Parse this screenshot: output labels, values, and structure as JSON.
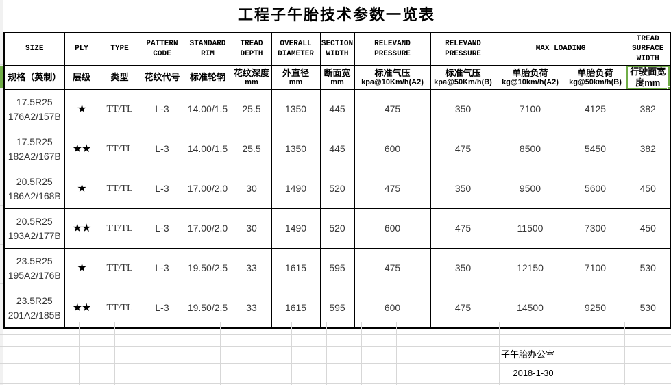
{
  "app": {
    "title": "工程子午胎技术参数一览表"
  },
  "table": {
    "header_row1": [
      "SIZE",
      "PLY",
      "TYPE",
      "PATTERN\nCODE",
      "STANDARD\nRIM",
      "TREAD\nDEPTH",
      "OVERALL\nDIAMETER",
      "SECTION\nWIDTH",
      "RELEVAND\nPRESSURE",
      "RELEVAND\nPRESSURE",
      "MAX LOADING",
      "TREAD\nSURFACE\nWIDTH"
    ],
    "header_row2": [
      {
        "main": "规格（英制）",
        "sub": ""
      },
      {
        "main": "层级",
        "sub": ""
      },
      {
        "main": "类型",
        "sub": ""
      },
      {
        "main": "花纹代号",
        "sub": ""
      },
      {
        "main": "标准轮辋",
        "sub": ""
      },
      {
        "main": "花纹深度",
        "sub": "mm"
      },
      {
        "main": "外直径",
        "sub": "mm"
      },
      {
        "main": "断面宽",
        "sub": "mm"
      },
      {
        "main": "标准气压",
        "sub": "kpa@10Km/h(A2)"
      },
      {
        "main": "标准气压",
        "sub": "kpa@50Km/h(B)"
      },
      {
        "main": "单胎负荷",
        "sub": "kg@10km/h(A2)"
      },
      {
        "main": "单胎负荷",
        "sub": "kg@50km/h(B)"
      },
      {
        "main": "行驶面宽度mm",
        "sub": ""
      }
    ],
    "rows": [
      [
        "17.5R25\n176A2/157B",
        "★",
        "TT/TL",
        "L-3",
        "14.00/1.5",
        "25.5",
        "1350",
        "445",
        "475",
        "350",
        "7100",
        "4125",
        "382"
      ],
      [
        "17.5R25\n182A2/167B",
        "★★",
        "TT/TL",
        "L-3",
        "14.00/1.5",
        "25.5",
        "1350",
        "445",
        "600",
        "475",
        "8500",
        "5450",
        "382"
      ],
      [
        "20.5R25\n186A2/168B",
        "★",
        "TT/TL",
        "L-3",
        "17.00/2.0",
        "30",
        "1490",
        "520",
        "475",
        "350",
        "9500",
        "5600",
        "450"
      ],
      [
        "20.5R25\n193A2/177B",
        "★★",
        "TT/TL",
        "L-3",
        "17.00/2.0",
        "30",
        "1490",
        "520",
        "600",
        "475",
        "11500",
        "7300",
        "450"
      ],
      [
        "23.5R25\n195A2/176B",
        "★",
        "TT/TL",
        "L-3",
        "19.50/2.5",
        "33",
        "1615",
        "595",
        "475",
        "350",
        "12150",
        "7100",
        "530"
      ],
      [
        "23.5R25\n201A2/185B",
        "★★",
        "TT/TL",
        "L-3",
        "19.50/2.5",
        "33",
        "1615",
        "595",
        "600",
        "475",
        "14500",
        "9250",
        "530"
      ]
    ]
  },
  "footer": {
    "office": "子午胎办公室",
    "date": "2018-1-30"
  },
  "colors": {
    "selection_green": "#70AD47",
    "grid_gray": "#d7d7d7"
  }
}
